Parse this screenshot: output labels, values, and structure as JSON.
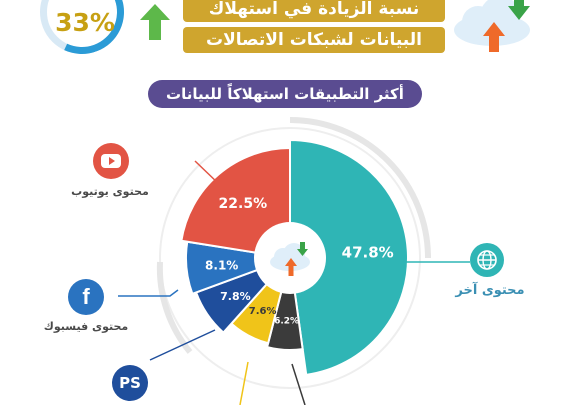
{
  "header": {
    "percent": "33%",
    "line1": "نسبة الزيادة في استهلاك",
    "line2": "البيانات لشبكات الاتصالات"
  },
  "section_title": "أكثر التطبيقات استهلاكاً للبيانات",
  "labels": {
    "youtube": "محتوى يوتيوب",
    "facebook": "محتوى فيسبوك",
    "other": "محتوى آخر"
  },
  "icons": {
    "youtube": "youtube-icon",
    "facebook": "facebook-icon",
    "other": "globe-icon",
    "playstation": "playstation-icon",
    "cloud": "cloud-arrows-icon"
  },
  "colors": {
    "other": "#2fb5b5",
    "youtube": "#e25444",
    "facebook": "#2a73c0",
    "playstation": "#1f4e9c",
    "gold": "#cfa52e",
    "pill": "#5a4c91"
  },
  "chart_data": {
    "type": "pie",
    "title": "أكثر التطبيقات استهلاكاً للبيانات",
    "slices": [
      {
        "name": "محتوى آخر",
        "value": 47.8,
        "label": "47.8%",
        "color": "#2fb5b5"
      },
      {
        "name": "",
        "value": 6.2,
        "label": "6.2%",
        "color": "#3b3b3b"
      },
      {
        "name": "",
        "value": 7.6,
        "label": "7.6%",
        "color": "#f0c419"
      },
      {
        "name": "",
        "value": 7.8,
        "label": "7.8%",
        "color": "#1f4e9c"
      },
      {
        "name": "محتوى فيسبوك",
        "value": 8.1,
        "label": "8.1%",
        "color": "#2a73c0"
      },
      {
        "name": "محتوى يوتيوب",
        "value": 22.5,
        "label": "22.5%",
        "color": "#e25444"
      }
    ]
  }
}
